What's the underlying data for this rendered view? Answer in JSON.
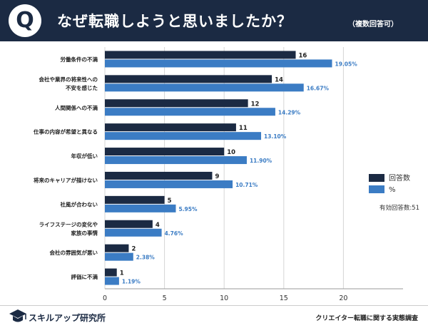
{
  "header": {
    "badge": "Q",
    "title": "なぜ転職しようと思いましたか？",
    "subtitle": "（複数回答可）"
  },
  "chart_data": {
    "type": "bar",
    "orientation": "horizontal",
    "categories": [
      "労働条件の不満",
      "会社や業界の将来性への\n不安を感じた",
      "人間関係への不満",
      "仕事の内容が希望と異なる",
      "年収が低い",
      "将来のキャリアが描けない",
      "社風が合わない",
      "ライフステージの変化や\n家族の事情",
      "会社の雰囲気が悪い",
      "評価に不満"
    ],
    "series": [
      {
        "name": "回答数",
        "values": [
          16,
          14,
          12,
          11,
          10,
          9,
          5,
          4,
          2,
          1
        ],
        "labels": [
          "16",
          "14",
          "12",
          "11",
          "10",
          "9",
          "5",
          "4",
          "2",
          "1"
        ]
      },
      {
        "name": "%",
        "values": [
          19.05,
          16.67,
          14.29,
          13.1,
          11.9,
          10.71,
          5.95,
          4.76,
          2.38,
          1.19
        ],
        "labels": [
          "19.05%",
          "16.67%",
          "14.29%",
          "13.10%",
          "11.90%",
          "10.71%",
          "5.95%",
          "4.76%",
          "2.38%",
          "1.19%"
        ]
      }
    ],
    "xlim": [
      0,
      25
    ],
    "xticks": [
      0,
      5,
      10,
      15,
      20
    ],
    "xtick_labels": [
      "0",
      "5",
      "10",
      "15",
      "20"
    ],
    "grid": true,
    "legend_position": "right",
    "note": "有効回答数:51",
    "colors": {
      "count": "#1b2a43",
      "percent": "#3b7cc4"
    }
  },
  "footer": {
    "logo_text": "スキルアップ研究所",
    "source": "クリエイター転職に関する実態調査"
  }
}
